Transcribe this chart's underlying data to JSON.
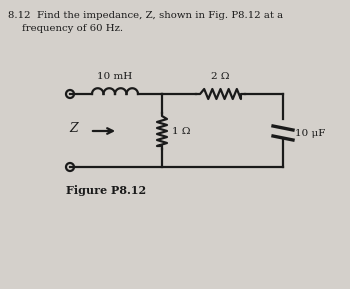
{
  "bg_color": "#d4d0cb",
  "title_line1": "8.12  Find the impedance, Z, shown in Fig. P8.12 at a",
  "title_line2": "frequency of 60 Hz.",
  "figure_label": "Figure P8.12",
  "label_10mH": "10 mH",
  "label_2ohm": "2 Ω",
  "label_1ohm": "1 Ω",
  "label_10uF": "10 μF",
  "label_Z": "Z",
  "line_color": "#1a1a1a",
  "text_color": "#1a1a1a",
  "line_width": 1.6
}
